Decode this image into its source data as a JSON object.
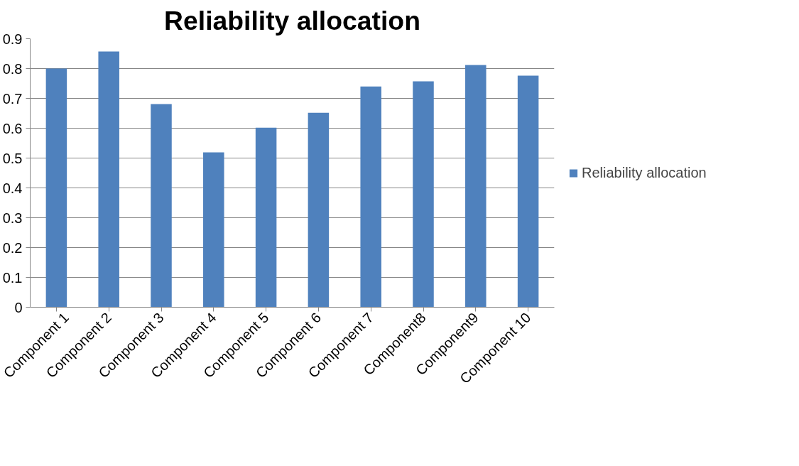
{
  "chart_data": {
    "type": "bar",
    "title": "Reliability allocation",
    "categories": [
      "Component 1",
      "Component 2",
      "Component 3",
      "Component 4",
      "Component 5",
      "Component 6",
      "Component 7",
      "Component8",
      "Component9",
      "Component 10"
    ],
    "series": [
      {
        "name": "Reliability allocation",
        "color": "#4f81bd",
        "values": [
          0.8,
          0.857,
          0.681,
          0.519,
          0.602,
          0.652,
          0.74,
          0.757,
          0.812,
          0.776
        ]
      }
    ],
    "ylim": [
      0,
      0.9
    ],
    "yticks": [
      0,
      0.1,
      0.2,
      0.3,
      0.4,
      0.5,
      0.6,
      0.7,
      0.8,
      0.9
    ],
    "grid": "y",
    "legend": "right"
  }
}
